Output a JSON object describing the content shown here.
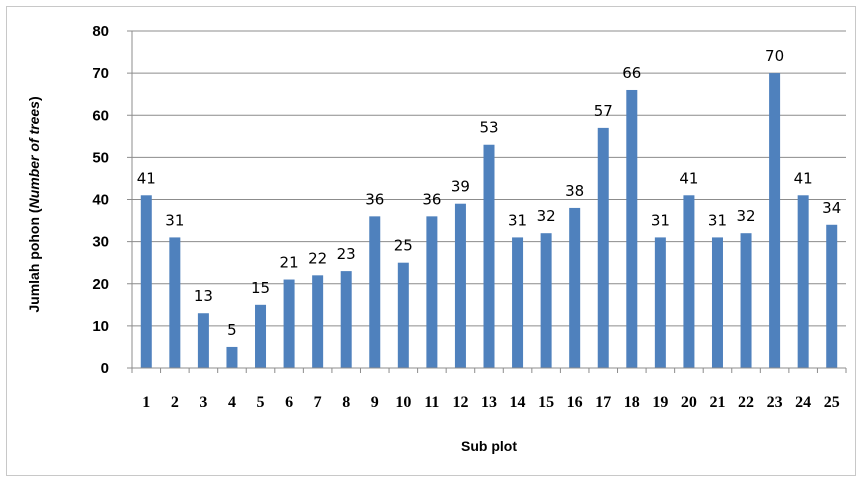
{
  "chart_data": {
    "type": "bar",
    "categories": [
      "1",
      "2",
      "3",
      "4",
      "5",
      "6",
      "7",
      "8",
      "9",
      "10",
      "11",
      "12",
      "13",
      "14",
      "15",
      "16",
      "17",
      "18",
      "19",
      "20",
      "21",
      "22",
      "23",
      "24",
      "25"
    ],
    "values": [
      41,
      31,
      13,
      5,
      15,
      21,
      22,
      23,
      36,
      25,
      36,
      39,
      53,
      31,
      32,
      38,
      57,
      66,
      31,
      41,
      31,
      32,
      70,
      41,
      34
    ],
    "xlabel": "Sub plot",
    "ylabel_main": "Jumlah pohon (",
    "ylabel_italic": "Number of trees",
    "ylabel_end": ")",
    "ylim": [
      0,
      80
    ],
    "yticks": [
      0,
      10,
      20,
      30,
      40,
      50,
      60,
      70,
      80
    ],
    "grid": true,
    "data_labels": true,
    "legend": "none",
    "colors": {
      "bar": "#4f81bd",
      "grid": "#8c8c8c",
      "axis": "#8c8c8c"
    }
  }
}
